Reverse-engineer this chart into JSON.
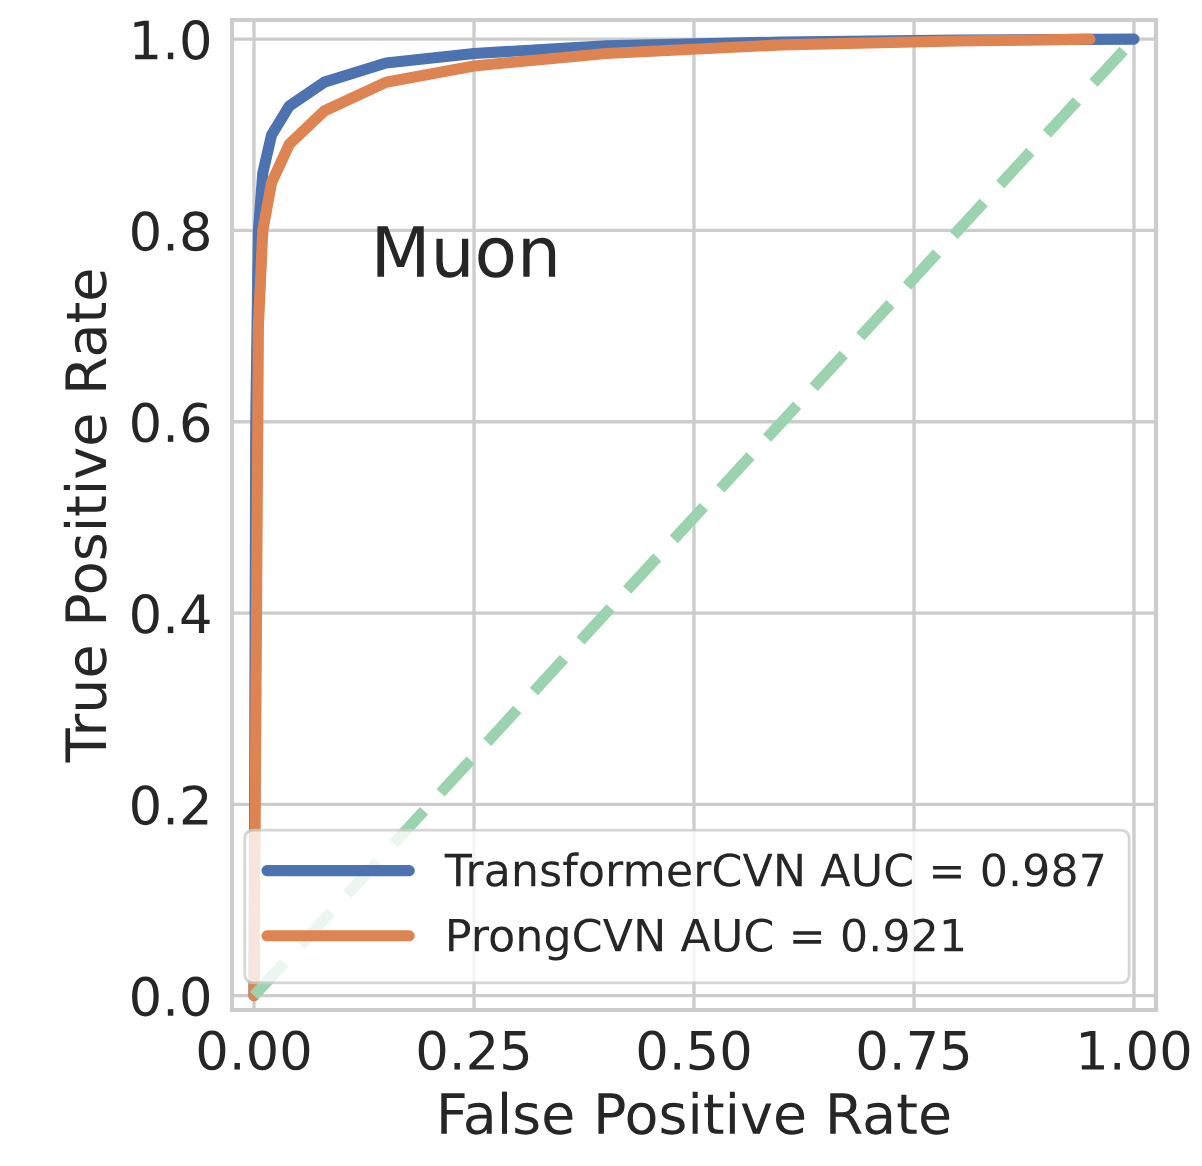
{
  "chart_data": {
    "type": "line",
    "xlabel": "False Positive Rate",
    "ylabel": "True Positive Rate",
    "annotations": [
      "Muon"
    ],
    "xlim": [
      -0.025,
      1.025
    ],
    "ylim": [
      -0.015,
      1.02
    ],
    "xticks": [
      {
        "value": 0,
        "label": "0.00"
      },
      0.25,
      {
        "value": 0.5,
        "label": "0.50"
      },
      0.75,
      {
        "value": 1,
        "label": "1.00"
      }
    ],
    "yticks": [
      {
        "value": 0,
        "label": "0.0"
      },
      0.2,
      0.4,
      0.6,
      0.8,
      {
        "value": 1,
        "label": "1.0"
      }
    ],
    "grid": true,
    "legend": "bottom right",
    "marker": "none",
    "series": [
      {
        "name": "TransformerCVN AUC = 0.987",
        "color": "#4c72b0",
        "x": [
          0,
          0.002,
          0.005,
          0.01,
          0.02,
          0.04,
          0.08,
          0.15,
          0.25,
          0.4,
          0.6,
          0.8,
          1.0
        ],
        "values": [
          0,
          0.6,
          0.8,
          0.86,
          0.9,
          0.93,
          0.955,
          0.975,
          0.985,
          0.993,
          0.997,
          0.999,
          1.0
        ]
      },
      {
        "name": "ProngCVN AUC = 0.921",
        "color": "#dd8452",
        "x": [
          0,
          0.005,
          0.01,
          0.02,
          0.04,
          0.08,
          0.15,
          0.25,
          0.4,
          0.6,
          0.8,
          0.95
        ],
        "values": [
          0,
          0.7,
          0.8,
          0.85,
          0.89,
          0.925,
          0.955,
          0.972,
          0.985,
          0.994,
          0.998,
          1.0
        ]
      },
      {
        "color": "#9ad3ae",
        "line_style": "dashed",
        "x": [
          0,
          1
        ],
        "values": [
          0,
          1
        ]
      }
    ]
  }
}
